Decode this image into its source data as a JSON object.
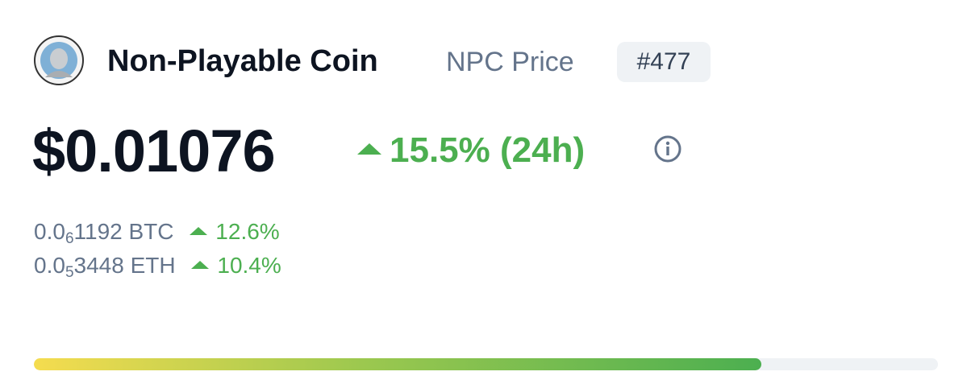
{
  "header": {
    "name": "Non-Playable Coin",
    "symbol_label": "NPC Price",
    "rank": "#477"
  },
  "price": {
    "value": "$0.01076",
    "change": "15.5% (24h)"
  },
  "conversions": [
    {
      "lead": "0.0",
      "zeros": "6",
      "rest": "1192 BTC",
      "change": "12.6%"
    },
    {
      "lead": "0.0",
      "zeros": "5",
      "rest": "3448 ETH",
      "change": "10.4%"
    }
  ],
  "range_bar": {
    "position_percent": 80.5
  }
}
